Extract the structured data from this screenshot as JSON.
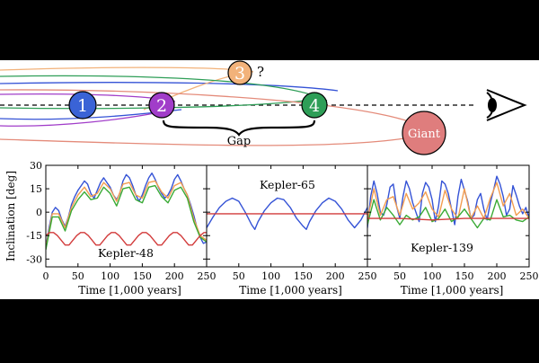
{
  "schematic": {
    "planets": [
      {
        "id": "p1",
        "label": "1",
        "color": "#3a63d6"
      },
      {
        "id": "p2",
        "label": "2",
        "color": "#a13dc9"
      },
      {
        "id": "p3",
        "label": "3",
        "color": "#f2b27a"
      },
      {
        "id": "p4",
        "label": "4",
        "color": "#2e9e57"
      },
      {
        "id": "giant",
        "label": "Giant",
        "color": "#df7d7d"
      }
    ],
    "question_mark": "?",
    "gap_label": "Gap",
    "observer_icon": "eye-icon"
  },
  "colors": {
    "blue": "#3553d6",
    "orange": "#f29d50",
    "green": "#3aaa35",
    "red": "#d23b3b",
    "purple": "#a13dc9",
    "salmon": "#e48b7a"
  },
  "chart_data": [
    {
      "type": "line",
      "title": "Kepler-48",
      "xlabel": "Time [1,000 years]",
      "ylabel": "Inclination [deg]",
      "xlim": [
        0,
        250
      ],
      "ylim": [
        -35,
        30
      ],
      "xticks": [
        0,
        50,
        100,
        150,
        200,
        250
      ],
      "yticks": [
        30,
        15,
        0,
        -15,
        -30
      ],
      "series": [
        {
          "color": "blue",
          "x": [
            0,
            5,
            10,
            15,
            20,
            25,
            30,
            35,
            40,
            45,
            50,
            55,
            60,
            65,
            70,
            75,
            80,
            85,
            90,
            95,
            100,
            105,
            110,
            115,
            120,
            125,
            130,
            135,
            140,
            145,
            150,
            155,
            160,
            165,
            170,
            175,
            180,
            185,
            190,
            195,
            200,
            205,
            210,
            215,
            220,
            225,
            230,
            235,
            240,
            245,
            250
          ],
          "y": [
            -23,
            -10,
            0,
            3,
            1,
            -5,
            -9,
            -3,
            5,
            10,
            14,
            17,
            20,
            18,
            12,
            9,
            14,
            19,
            22,
            19,
            16,
            11,
            8,
            12,
            20,
            24,
            22,
            17,
            11,
            7,
            11,
            17,
            22,
            25,
            21,
            16,
            12,
            9,
            11,
            15,
            21,
            24,
            20,
            15,
            11,
            5,
            -2,
            -10,
            -16,
            -20,
            -19
          ]
        },
        {
          "color": "orange",
          "x": [
            0,
            10,
            20,
            30,
            40,
            50,
            60,
            70,
            80,
            90,
            100,
            110,
            120,
            130,
            140,
            150,
            160,
            170,
            180,
            190,
            200,
            210,
            220,
            230,
            240,
            250
          ],
          "y": [
            -23,
            -1,
            -1,
            -10,
            3,
            11,
            16,
            10,
            12,
            19,
            15,
            7,
            18,
            19,
            11,
            9,
            19,
            20,
            13,
            9,
            17,
            19,
            11,
            -4,
            -15,
            -18
          ]
        },
        {
          "color": "green",
          "x": [
            0,
            10,
            20,
            30,
            40,
            50,
            60,
            70,
            80,
            90,
            100,
            110,
            120,
            130,
            140,
            150,
            160,
            170,
            180,
            190,
            200,
            210,
            220,
            230,
            240,
            250
          ],
          "y": [
            -24,
            -3,
            -3,
            -12,
            1,
            8,
            13,
            8,
            9,
            16,
            12,
            4,
            15,
            16,
            8,
            6,
            16,
            17,
            10,
            6,
            14,
            16,
            9,
            -6,
            -16,
            -19
          ]
        },
        {
          "color": "red",
          "x": [
            0,
            6,
            12,
            18,
            24,
            30,
            36,
            42,
            48,
            54,
            60,
            66,
            72,
            78,
            84,
            90,
            96,
            102,
            108,
            114,
            120,
            126,
            132,
            138,
            144,
            150,
            156,
            162,
            168,
            174,
            180,
            186,
            192,
            198,
            204,
            210,
            216,
            222,
            228,
            234,
            240,
            246,
            250
          ],
          "y": [
            -15,
            -13,
            -13,
            -15,
            -18,
            -21,
            -21,
            -18,
            -15,
            -13,
            -13,
            -15,
            -18,
            -21,
            -21,
            -18,
            -15,
            -13,
            -13,
            -15,
            -18,
            -21,
            -21,
            -18,
            -15,
            -13,
            -13,
            -15,
            -18,
            -21,
            -21,
            -18,
            -15,
            -13,
            -13,
            -15,
            -18,
            -21,
            -21,
            -18,
            -15,
            -13,
            -13
          ]
        }
      ]
    },
    {
      "type": "line",
      "title": "Kepler-65",
      "xlabel": "Time [1,000 years]",
      "xlim": [
        0,
        250
      ],
      "ylim": [
        -35,
        30
      ],
      "xticks": [
        50,
        100,
        150,
        200,
        250
      ],
      "series": [
        {
          "color": "blue",
          "x": [
            0,
            10,
            20,
            30,
            40,
            50,
            60,
            70,
            75,
            80,
            90,
            100,
            110,
            120,
            130,
            140,
            150,
            155,
            160,
            170,
            180,
            190,
            200,
            210,
            220,
            230,
            240,
            250
          ],
          "y": [
            -10,
            -3,
            3,
            7,
            9,
            7,
            0,
            -8,
            -11,
            -6,
            1,
            6,
            9,
            8,
            3,
            -4,
            -9,
            -11,
            -6,
            1,
            6,
            9,
            7,
            2,
            -5,
            -10,
            -5,
            3
          ]
        },
        {
          "color": "red",
          "x": [
            0,
            50,
            100,
            150,
            200,
            250
          ],
          "y": [
            -1,
            -1,
            -1,
            -1,
            -1,
            -1
          ]
        }
      ]
    },
    {
      "type": "line",
      "title": "Kepler-139",
      "xlabel": "Time [1,000 years]",
      "xlim": [
        0,
        250
      ],
      "ylim": [
        -35,
        30
      ],
      "xticks": [
        50,
        100,
        150,
        200,
        250
      ],
      "series": [
        {
          "color": "blue",
          "x": [
            0,
            5,
            10,
            15,
            20,
            25,
            30,
            35,
            40,
            45,
            50,
            55,
            60,
            65,
            70,
            75,
            80,
            85,
            90,
            95,
            100,
            105,
            110,
            115,
            120,
            125,
            130,
            135,
            140,
            145,
            150,
            155,
            160,
            165,
            170,
            175,
            180,
            185,
            190,
            195,
            200,
            205,
            210,
            215,
            220,
            225,
            230,
            235,
            240,
            245,
            250
          ],
          "y": [
            -10,
            10,
            20,
            12,
            0,
            -2,
            5,
            16,
            18,
            4,
            -4,
            10,
            20,
            15,
            6,
            0,
            -6,
            12,
            19,
            16,
            8,
            -6,
            4,
            20,
            18,
            12,
            2,
            -8,
            10,
            21,
            14,
            7,
            -4,
            -2,
            8,
            12,
            2,
            -5,
            6,
            14,
            23,
            18,
            10,
            -2,
            2,
            17,
            11,
            4,
            -1,
            3,
            -4
          ]
        },
        {
          "color": "orange",
          "x": [
            0,
            10,
            20,
            30,
            40,
            50,
            60,
            70,
            80,
            90,
            100,
            110,
            120,
            130,
            140,
            150,
            160,
            170,
            180,
            190,
            200,
            210,
            220,
            230,
            240,
            250
          ],
          "y": [
            -5,
            15,
            -2,
            8,
            10,
            -2,
            12,
            2,
            6,
            13,
            2,
            -3,
            14,
            2,
            -4,
            15,
            -4,
            4,
            -4,
            9,
            19,
            4,
            12,
            -2,
            2,
            -4
          ]
        },
        {
          "color": "green",
          "x": [
            0,
            10,
            20,
            30,
            40,
            50,
            60,
            70,
            80,
            90,
            100,
            110,
            120,
            130,
            140,
            150,
            160,
            170,
            180,
            190,
            200,
            210,
            220,
            230,
            240,
            250
          ],
          "y": [
            -8,
            8,
            -5,
            3,
            -2,
            -8,
            -2,
            -5,
            -3,
            3,
            -6,
            -4,
            2,
            -6,
            -3,
            2,
            -4,
            -10,
            -4,
            -5,
            8,
            -3,
            -2,
            -5,
            -6,
            -3
          ]
        },
        {
          "color": "red",
          "x": [
            0,
            50,
            100,
            150,
            200,
            250
          ],
          "y": [
            -4,
            -4,
            -5,
            -4,
            -4,
            -4
          ]
        }
      ]
    }
  ]
}
